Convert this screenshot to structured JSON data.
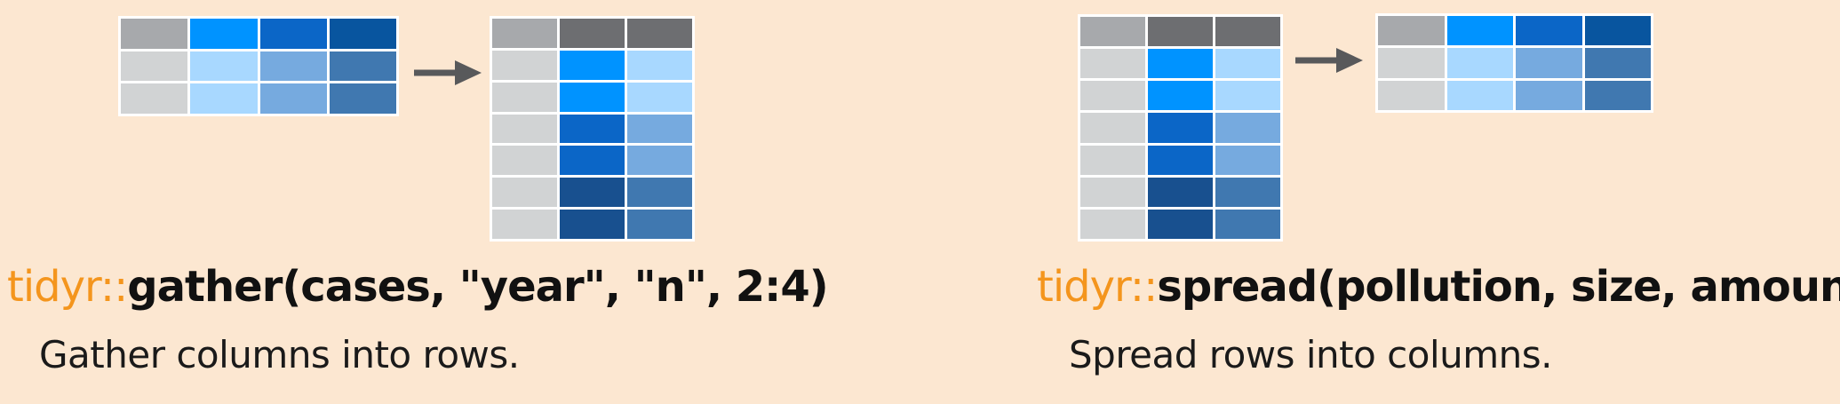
{
  "colors": {
    "background": "#fce7d1",
    "namespace": "#f4951d",
    "function_text": "#111111",
    "description_text": "#1a1a1a",
    "arrow": "#58595b",
    "grey_header": "#a7a9ac",
    "dark_header": "#6d6e71",
    "light_grey": "#d1d3d4",
    "blue_1": "#0093ff",
    "blue_1_light": "#a8d8ff",
    "blue_2": "#0b66c7",
    "blue_2_light": "#76aadf",
    "blue_3": "#18508f",
    "blue_3_light": "#4078b0",
    "blue_4_header": "#08559f"
  },
  "gather": {
    "namespace": "tidyr::",
    "call": "gather(cases, \"year\", \"n\", 2:4)",
    "description": "Gather columns into rows.",
    "arrow_icon": "right-arrow-icon",
    "wide_table": [
      [
        "grey_header",
        "blue_1",
        "blue_2",
        "blue_4_header"
      ],
      [
        "light_grey",
        "blue_1_light",
        "blue_2_light",
        "blue_3_light"
      ],
      [
        "light_grey",
        "blue_1_light",
        "blue_2_light",
        "blue_3_light"
      ]
    ],
    "long_table": [
      [
        "grey_header",
        "dark_header",
        "dark_header"
      ],
      [
        "light_grey",
        "blue_1",
        "blue_1_light"
      ],
      [
        "light_grey",
        "blue_1",
        "blue_1_light"
      ],
      [
        "light_grey",
        "blue_2",
        "blue_2_light"
      ],
      [
        "light_grey",
        "blue_2",
        "blue_2_light"
      ],
      [
        "light_grey",
        "blue_3",
        "blue_3_light"
      ],
      [
        "light_grey",
        "blue_3",
        "blue_3_light"
      ]
    ]
  },
  "spread": {
    "namespace": "tidyr::",
    "call": "spread(pollution, size, amount)",
    "description": "Spread rows into columns.",
    "arrow_icon": "right-arrow-icon",
    "long_table": [
      [
        "grey_header",
        "dark_header",
        "dark_header"
      ],
      [
        "light_grey",
        "blue_1",
        "blue_1_light"
      ],
      [
        "light_grey",
        "blue_1",
        "blue_1_light"
      ],
      [
        "light_grey",
        "blue_2",
        "blue_2_light"
      ],
      [
        "light_grey",
        "blue_2",
        "blue_2_light"
      ],
      [
        "light_grey",
        "blue_3",
        "blue_3_light"
      ],
      [
        "light_grey",
        "blue_3",
        "blue_3_light"
      ]
    ],
    "wide_table": [
      [
        "grey_header",
        "blue_1",
        "blue_2",
        "blue_4_header"
      ],
      [
        "light_grey",
        "blue_1_light",
        "blue_2_light",
        "blue_3_light"
      ],
      [
        "light_grey",
        "blue_1_light",
        "blue_2_light",
        "blue_3_light"
      ]
    ]
  }
}
